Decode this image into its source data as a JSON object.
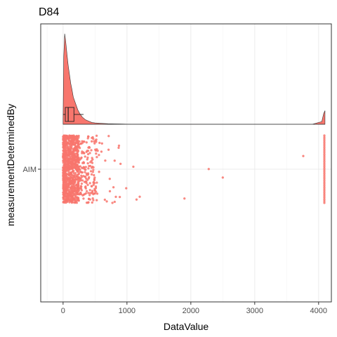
{
  "chart_data": {
    "type": "scatter",
    "title": "D84",
    "xlabel": "DataValue",
    "ylabel": "measurementDeterminedBy",
    "xlim": [
      -350,
      4200
    ],
    "x_ticks": [
      0,
      1000,
      2000,
      3000,
      4000
    ],
    "x_tick_labels": [
      "0",
      "1000",
      "2000",
      "3000",
      "4000"
    ],
    "categories": [
      "AIM"
    ],
    "grid": true,
    "legend": "none",
    "colors": {
      "fill": "#F8766D",
      "grid": "#ebebeb",
      "border": "#333333"
    },
    "density": {
      "x": [
        0,
        10,
        25,
        40,
        60,
        80,
        100,
        120,
        140,
        160,
        180,
        200,
        230,
        260,
        300,
        350,
        400,
        450,
        500,
        600,
        700,
        800,
        900,
        1000,
        1500,
        2000,
        3000,
        3900,
        4050,
        4080,
        4100
      ],
      "height": [
        0.05,
        0.75,
        1.0,
        0.92,
        0.78,
        0.65,
        0.55,
        0.45,
        0.38,
        0.3,
        0.26,
        0.22,
        0.16,
        0.12,
        0.08,
        0.05,
        0.035,
        0.02,
        0.015,
        0.01,
        0.006,
        0.004,
        0.003,
        0.002,
        0.001,
        0.001,
        0.0,
        0.0,
        0.03,
        0.12,
        0.15
      ]
    },
    "boxplot": {
      "min": 0,
      "q1": 35,
      "median": 80,
      "q3": 170,
      "max": 320
    },
    "points": {
      "category": "AIM",
      "dense_region": [
        0,
        250
      ],
      "medium_region": [
        250,
        520
      ],
      "sparse_region": [
        520,
        1000
      ],
      "outliers": [
        1100,
        1150,
        1200,
        1900,
        2280,
        2500,
        3760
      ],
      "max_cluster": 4090
    }
  }
}
